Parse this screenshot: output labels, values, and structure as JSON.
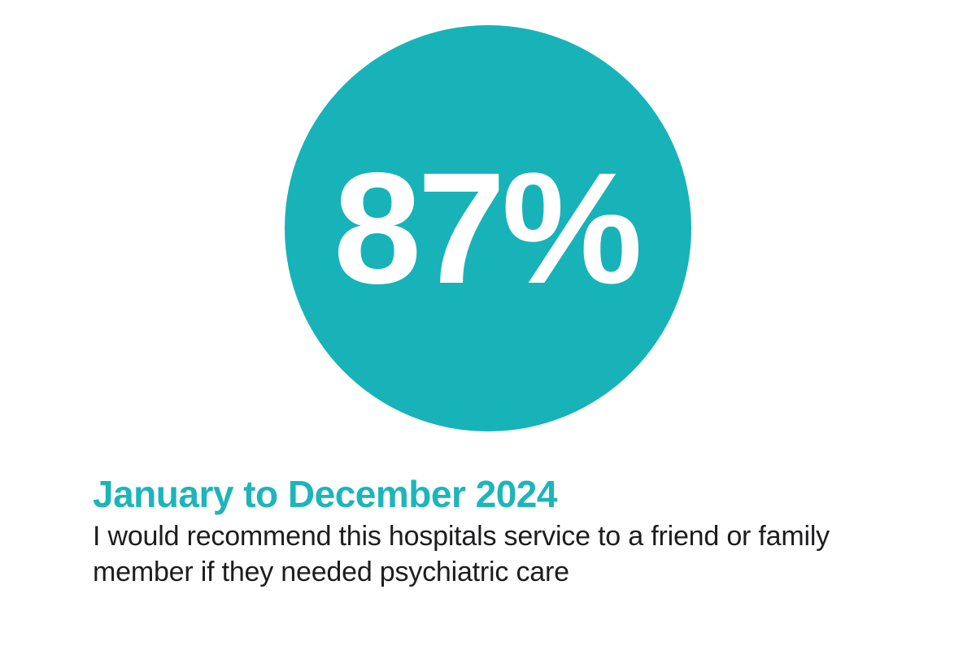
{
  "chart_data": {
    "type": "stat",
    "value": 87,
    "unit": "%",
    "display_value": "87%",
    "title": "January to December 2024",
    "subtitle": "I would recommend this hospitals service to a friend or family member if they needed psychiatric care",
    "layout_hints": {
      "style": "big number centered inside solid circle",
      "caption_position": "below, left-aligned",
      "grid": "off",
      "legend": "none"
    },
    "colors": {
      "circle_fill": "#17b3b8",
      "value_text": "#ffffff",
      "title_text": "#1db5ba",
      "subtitle_text": "#1d1d1f",
      "background": "#ffffff"
    }
  },
  "stat_circle": {
    "value_label": "87%",
    "fill_color": "#17b3b8",
    "value_color": "#ffffff"
  },
  "heading": {
    "text": "January to December 2024",
    "color": "#1db5ba"
  },
  "description": {
    "text": "I would recommend this hospitals service to a friend or family member if they needed psychiatric care",
    "color": "#1d1d1f"
  }
}
